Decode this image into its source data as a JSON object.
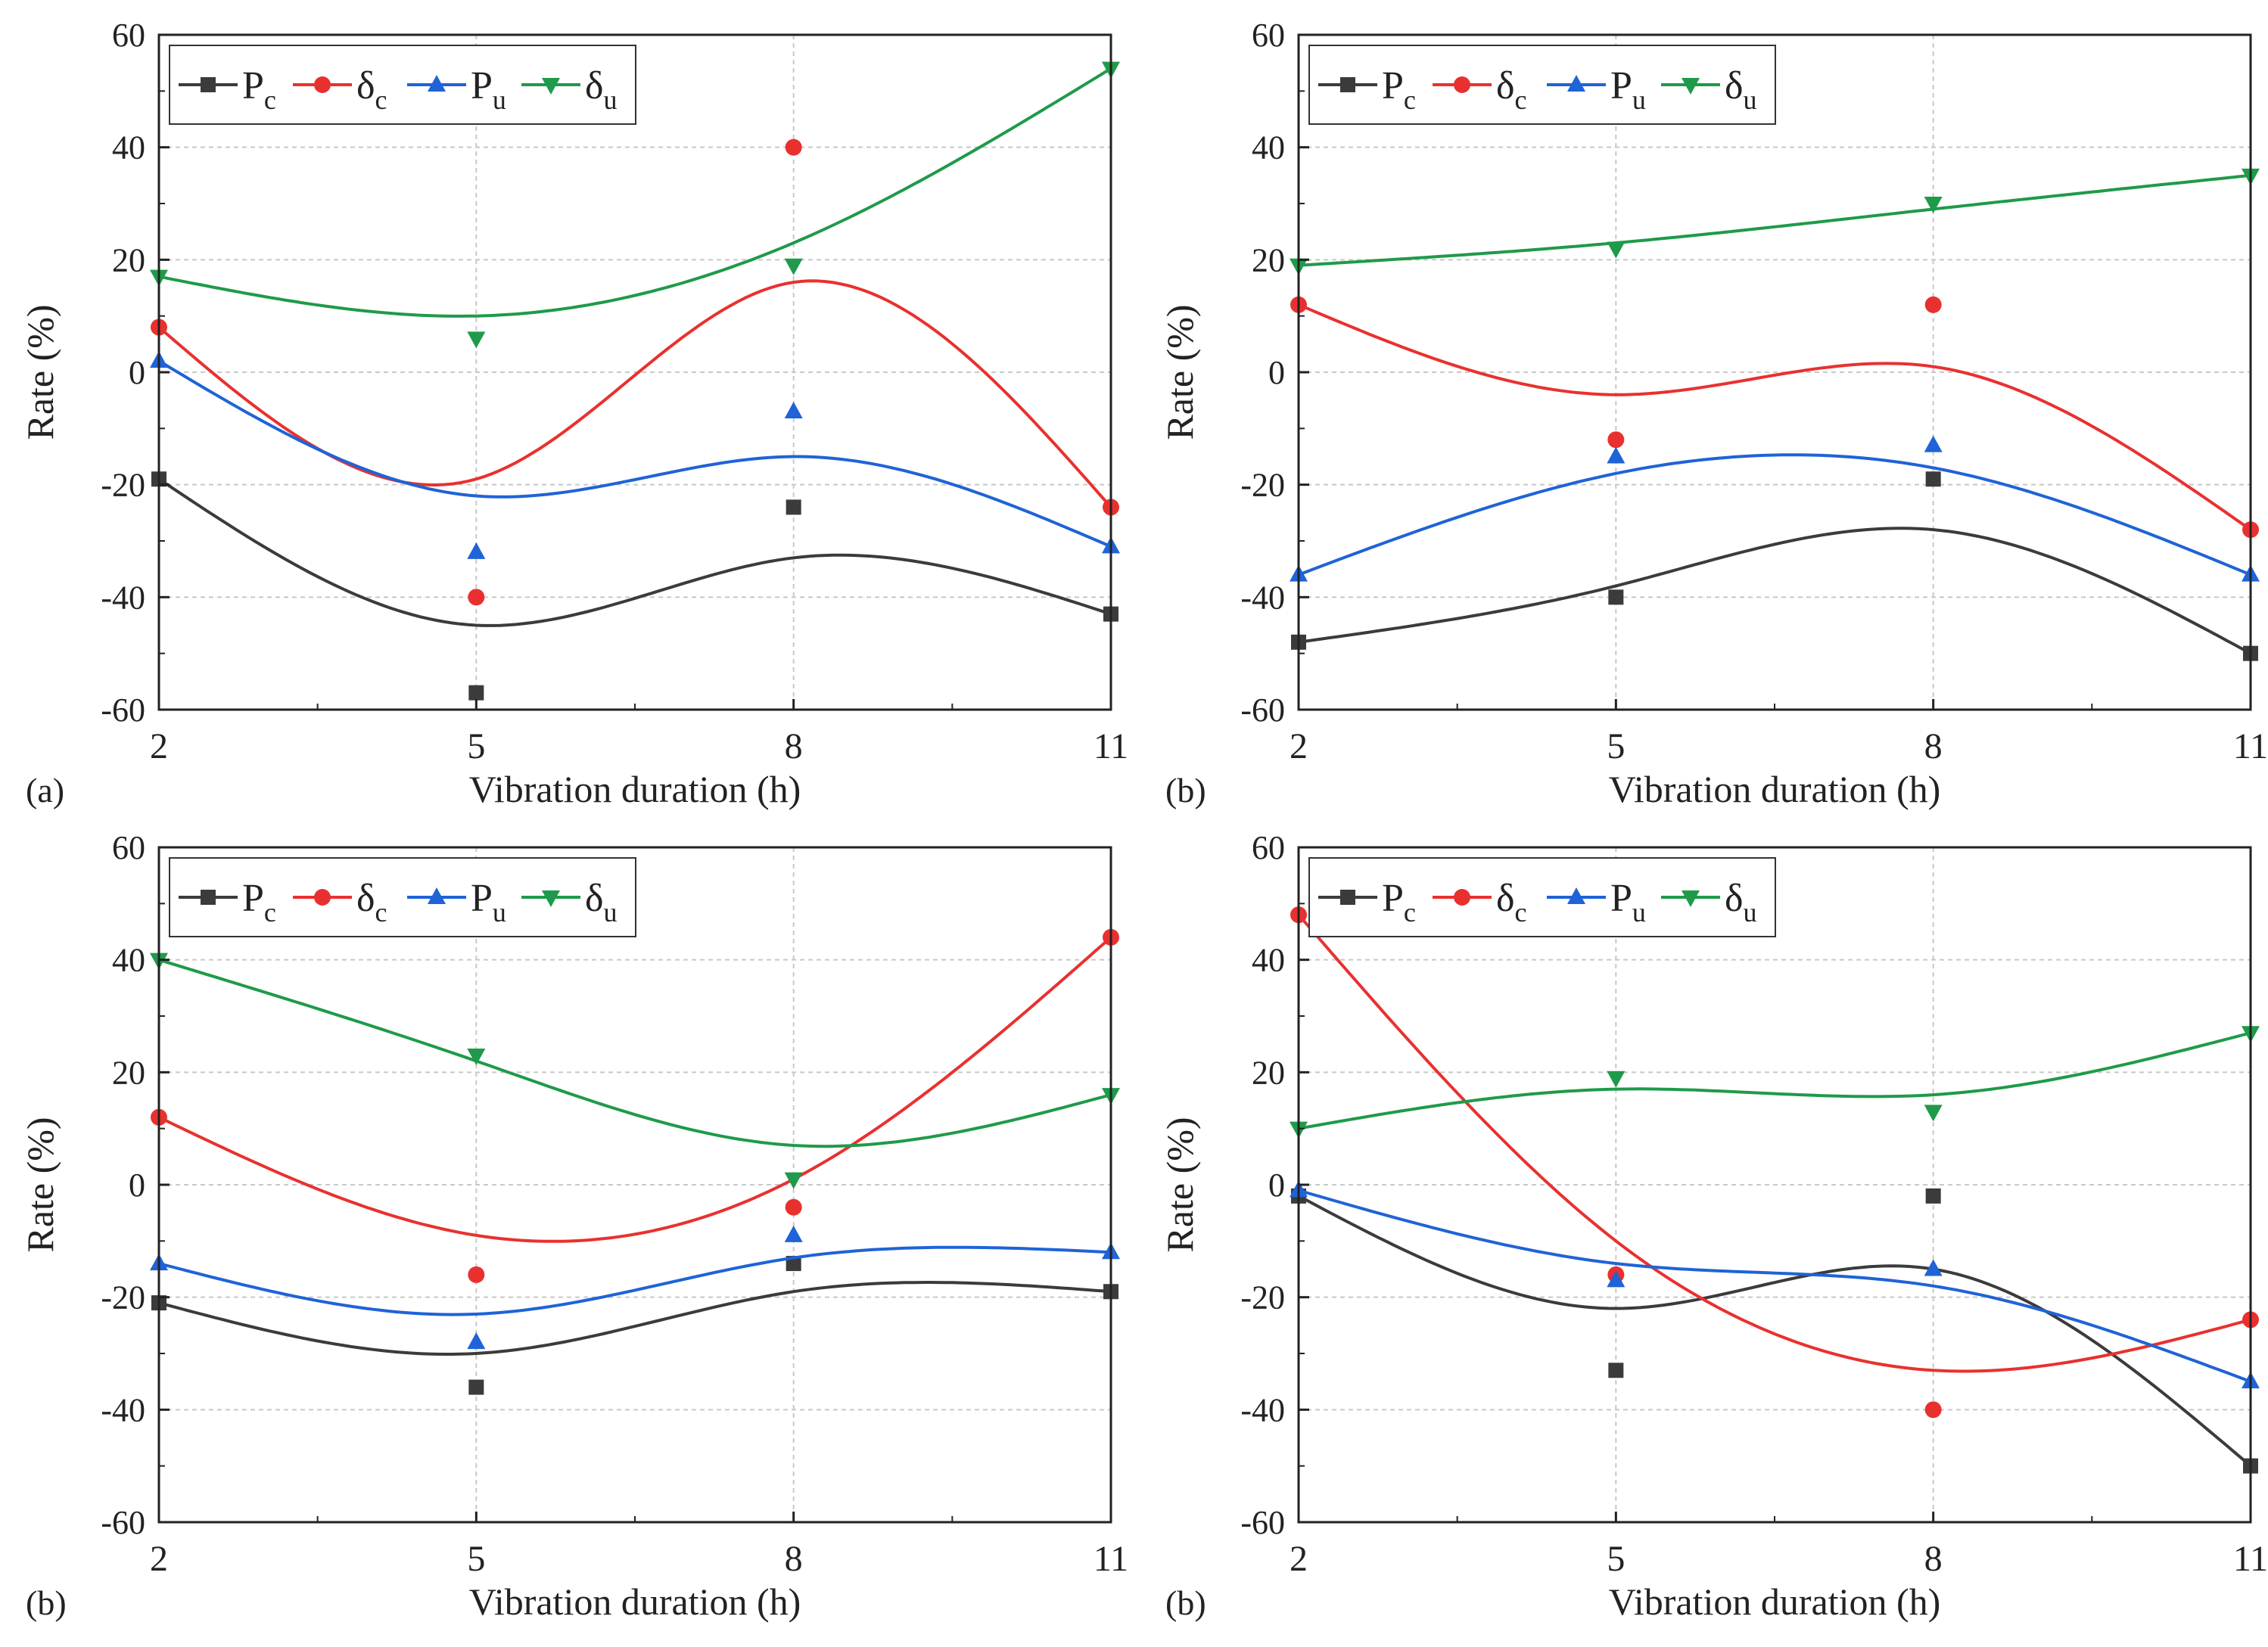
{
  "colors": {
    "Pc": "#3b3b3b",
    "dc": "#e8312f",
    "Pu": "#1f63d6",
    "du": "#1f9a4a",
    "grid": "#c8c8c8",
    "axis": "#222222"
  },
  "chart_data": [
    {
      "panel_label": "(a)",
      "type": "scatter",
      "xlabel": "Vibration duration (h)",
      "ylabel": "Rate (%)",
      "xlim": [
        2,
        11
      ],
      "ylim": [
        -60,
        60
      ],
      "xticks": [
        2,
        5,
        8,
        11
      ],
      "yticks": [
        -60,
        -40,
        -20,
        0,
        20,
        40,
        60
      ],
      "grid": true,
      "legend_position": "top-left",
      "x": [
        2,
        5,
        8,
        11
      ],
      "series": [
        {
          "key": "Pc",
          "name": "P",
          "sub": "c",
          "marker": "square",
          "values": [
            -19,
            -57,
            -24,
            -43
          ],
          "fit": [
            -19,
            -45,
            -33,
            -43
          ]
        },
        {
          "key": "dc",
          "name": "δ",
          "sub": "c",
          "marker": "circle",
          "values": [
            8,
            -40,
            40,
            -24
          ],
          "fit": [
            8,
            -19,
            16,
            -24
          ]
        },
        {
          "key": "Pu",
          "name": "P",
          "sub": "u",
          "marker": "triangle-up",
          "values": [
            2,
            -32,
            -7,
            -31
          ],
          "fit": [
            2,
            -22,
            -15,
            -31
          ]
        },
        {
          "key": "du",
          "name": "δ",
          "sub": "u",
          "marker": "triangle-down",
          "values": [
            17,
            6,
            19,
            54
          ],
          "fit": [
            17,
            10,
            23,
            54
          ]
        }
      ]
    },
    {
      "panel_label": "(b)",
      "type": "scatter",
      "xlabel": "Vibration duration (h)",
      "ylabel": "Rate (%)",
      "xlim": [
        2,
        11
      ],
      "ylim": [
        -60,
        60
      ],
      "xticks": [
        2,
        5,
        8,
        11
      ],
      "yticks": [
        -60,
        -40,
        -20,
        0,
        20,
        40,
        60
      ],
      "grid": true,
      "legend_position": "top-left",
      "x": [
        2,
        5,
        8,
        11
      ],
      "series": [
        {
          "key": "Pc",
          "name": "P",
          "sub": "c",
          "marker": "square",
          "values": [
            -48,
            -40,
            -19,
            -50
          ],
          "fit": [
            -48,
            -38,
            -28,
            -50
          ]
        },
        {
          "key": "dc",
          "name": "δ",
          "sub": "c",
          "marker": "circle",
          "values": [
            12,
            -12,
            12,
            -28
          ],
          "fit": [
            12,
            -4,
            1,
            -28
          ]
        },
        {
          "key": "Pu",
          "name": "P",
          "sub": "u",
          "marker": "triangle-up",
          "values": [
            -36,
            -15,
            -13,
            -36
          ],
          "fit": [
            -36,
            -18,
            -17,
            -36
          ]
        },
        {
          "key": "du",
          "name": "δ",
          "sub": "u",
          "marker": "triangle-down",
          "values": [
            19,
            22,
            30,
            35
          ],
          "fit": [
            19,
            23,
            29,
            35
          ]
        }
      ]
    },
    {
      "panel_label": "(b)",
      "type": "scatter",
      "xlabel": "Vibration duration (h)",
      "ylabel": "Rate (%)",
      "xlim": [
        2,
        11
      ],
      "ylim": [
        -60,
        60
      ],
      "xticks": [
        2,
        5,
        8,
        11
      ],
      "yticks": [
        -60,
        -40,
        -20,
        0,
        20,
        40,
        60
      ],
      "grid": true,
      "legend_position": "top-left",
      "x": [
        2,
        5,
        8,
        11
      ],
      "series": [
        {
          "key": "Pc",
          "name": "P",
          "sub": "c",
          "marker": "square",
          "values": [
            -21,
            -36,
            -14,
            -19
          ],
          "fit": [
            -21,
            -30,
            -19,
            -19
          ]
        },
        {
          "key": "dc",
          "name": "δ",
          "sub": "c",
          "marker": "circle",
          "values": [
            12,
            -16,
            -4,
            44
          ],
          "fit": [
            12,
            -9,
            1,
            44
          ]
        },
        {
          "key": "Pu",
          "name": "P",
          "sub": "u",
          "marker": "triangle-up",
          "values": [
            -14,
            -28,
            -9,
            -12
          ],
          "fit": [
            -14,
            -23,
            -13,
            -12
          ]
        },
        {
          "key": "du",
          "name": "δ",
          "sub": "u",
          "marker": "triangle-down",
          "values": [
            40,
            23,
            1,
            16
          ],
          "fit": [
            40,
            22,
            7,
            16
          ]
        }
      ]
    },
    {
      "panel_label": "(b)",
      "type": "scatter",
      "xlabel": "Vibration duration (h)",
      "ylabel": "Rate (%)",
      "xlim": [
        2,
        11
      ],
      "ylim": [
        -60,
        60
      ],
      "xticks": [
        2,
        5,
        8,
        11
      ],
      "yticks": [
        -60,
        -40,
        -20,
        0,
        20,
        40,
        60
      ],
      "grid": true,
      "legend_position": "top-left",
      "x": [
        2,
        5,
        8,
        11
      ],
      "series": [
        {
          "key": "Pc",
          "name": "P",
          "sub": "c",
          "marker": "square",
          "values": [
            -2,
            -33,
            -2,
            -50
          ],
          "fit": [
            -2,
            -22,
            -15,
            -50
          ]
        },
        {
          "key": "dc",
          "name": "δ",
          "sub": "c",
          "marker": "circle",
          "values": [
            48,
            -16,
            -40,
            -24
          ],
          "fit": [
            48,
            -10,
            -33,
            -24
          ]
        },
        {
          "key": "Pu",
          "name": "P",
          "sub": "u",
          "marker": "triangle-up",
          "values": [
            -1,
            -17,
            -15,
            -35
          ],
          "fit": [
            -1,
            -14,
            -18,
            -35
          ]
        },
        {
          "key": "du",
          "name": "δ",
          "sub": "u",
          "marker": "triangle-down",
          "values": [
            10,
            19,
            13,
            27
          ],
          "fit": [
            10,
            17,
            16,
            27
          ]
        }
      ]
    }
  ]
}
